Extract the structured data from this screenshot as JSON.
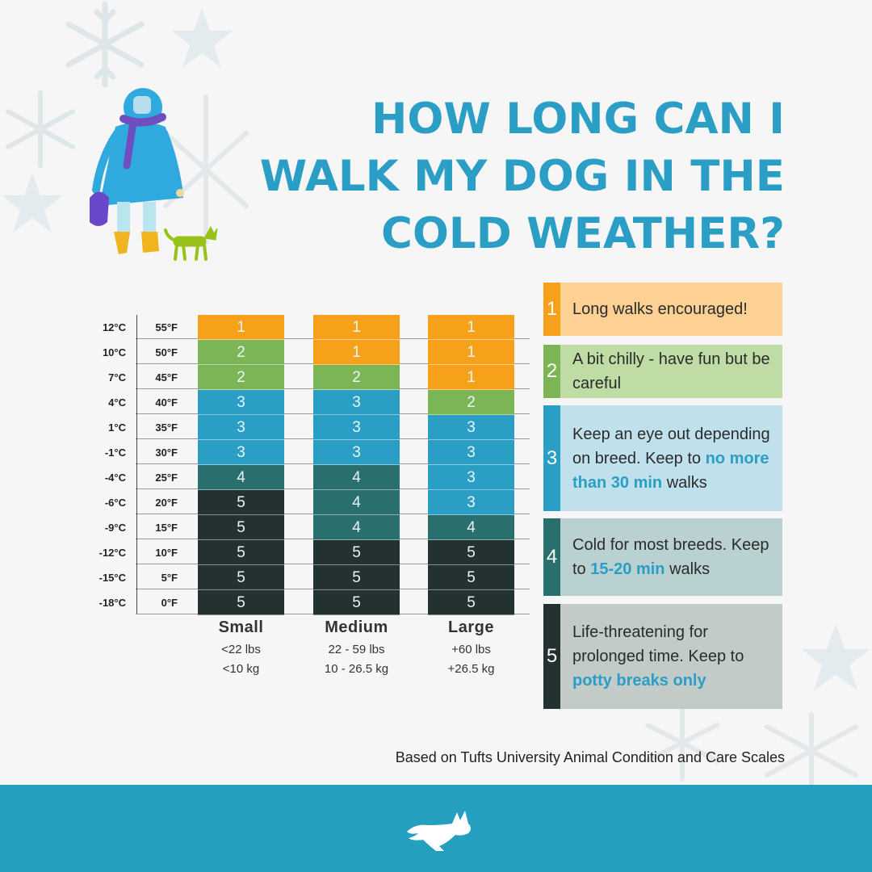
{
  "title": {
    "lines": [
      "HOW LONG CAN I",
      "WALK MY DOG IN THE",
      "COLD WEATHER?"
    ]
  },
  "colors": {
    "level1": "#f7a11a",
    "level2": "#7cb556",
    "level3": "#2a9ec4",
    "level4": "#286f6d",
    "level5": "#233230",
    "title": "#2a9ec4",
    "footer": "#259fbf",
    "background": "#f7f6f6"
  },
  "chart_data": {
    "type": "table",
    "temperatures_c": [
      "12°C",
      "10°C",
      "7°C",
      "4°C",
      "1°C",
      "-1°C",
      "-4°C",
      "-6°C",
      "-9°C",
      "-12°C",
      "-15°C",
      "-18°C"
    ],
    "temperatures_f": [
      "55°F",
      "50°F",
      "45°F",
      "40°F",
      "35°F",
      "30°F",
      "25°F",
      "20°F",
      "15°F",
      "10°F",
      "5°F",
      "0°F"
    ],
    "columns": [
      {
        "name": "Small",
        "weight_lbs": "<22 lbs",
        "weight_kg": "<10 kg",
        "values": [
          1,
          2,
          2,
          3,
          3,
          3,
          4,
          5,
          5,
          5,
          5,
          5
        ]
      },
      {
        "name": "Medium",
        "weight_lbs": "22 - 59 lbs",
        "weight_kg": "10 - 26.5 kg",
        "values": [
          1,
          1,
          2,
          3,
          3,
          3,
          4,
          4,
          4,
          5,
          5,
          5
        ]
      },
      {
        "name": "Large",
        "weight_lbs": "+60 lbs",
        "weight_kg": "+26.5 kg",
        "values": [
          1,
          1,
          1,
          2,
          3,
          3,
          3,
          3,
          4,
          5,
          5,
          5
        ]
      }
    ]
  },
  "legend": [
    {
      "number": "1",
      "parts": [
        [
          "Long walks",
          false
        ],
        [
          " encouraged!",
          false
        ]
      ]
    },
    {
      "number": "2",
      "parts": [
        [
          "A bit chilly - have fun but be careful",
          false
        ]
      ]
    },
    {
      "number": "3",
      "parts": [
        [
          "Keep an eye out depending on breed. Keep to ",
          false
        ],
        [
          "no more than 30 min",
          true
        ],
        [
          " walks",
          false
        ]
      ]
    },
    {
      "number": "4",
      "parts": [
        [
          "Cold for most breeds. Keep to ",
          false
        ],
        [
          "15-20 min",
          true
        ],
        [
          " walks",
          false
        ]
      ]
    },
    {
      "number": "5",
      "parts": [
        [
          "Life-threatening for prolonged time. Keep to ",
          false
        ],
        [
          "potty breaks only",
          true
        ]
      ]
    }
  ],
  "footer": {
    "note": "Based on Tufts University Animal Condition and Care Scales",
    "logo_icon": "running-dog-icon"
  },
  "illustration": {
    "person_icon": "person-in-raincoat-icon",
    "dog_icon": "small-dog-icon",
    "decor_icon": "snowflake-icon"
  }
}
